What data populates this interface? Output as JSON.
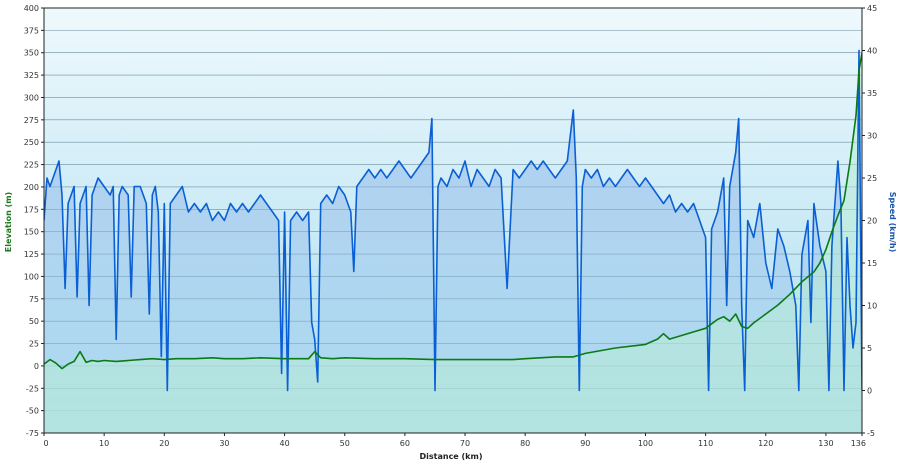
{
  "chart_data": {
    "type": "line",
    "xlabel": "Distance (km)",
    "ylabel_left": "Elevation (m)",
    "ylabel_right": "Speed (km/h)",
    "xlim": [
      0,
      136
    ],
    "x_ticks": [
      0,
      10,
      20,
      30,
      40,
      50,
      60,
      70,
      80,
      90,
      100,
      110,
      120,
      130,
      136
    ],
    "ylim_left": [
      -75,
      400
    ],
    "y_left_ticks": [
      -75,
      -50,
      -25,
      0,
      25,
      50,
      75,
      100,
      125,
      150,
      175,
      200,
      225,
      250,
      275,
      300,
      325,
      350,
      375,
      400
    ],
    "ylim_right": [
      -5,
      45
    ],
    "y_right_ticks": [
      -5,
      0,
      5,
      10,
      15,
      20,
      25,
      30,
      35,
      40,
      45
    ],
    "grid": "horizontal",
    "colors": {
      "elevation": "#0a7a16",
      "speed": "#0b5fd4",
      "elevation_axis": "#1e7a1e",
      "speed_axis": "#1a55b0",
      "plot_top": "#eef9fd",
      "plot_bottom": "#a9dcef",
      "speed_fill": "#6f9fe2"
    },
    "series": [
      {
        "name": "Elevation",
        "axis": "left",
        "points": [
          [
            0,
            2
          ],
          [
            1,
            7
          ],
          [
            2,
            3
          ],
          [
            3,
            -3
          ],
          [
            4,
            2
          ],
          [
            5,
            5
          ],
          [
            6,
            16
          ],
          [
            7,
            4
          ],
          [
            8,
            6
          ],
          [
            9,
            5
          ],
          [
            10,
            6
          ],
          [
            12,
            5
          ],
          [
            14,
            6
          ],
          [
            16,
            7
          ],
          [
            18,
            8
          ],
          [
            20,
            7
          ],
          [
            22,
            8
          ],
          [
            25,
            8
          ],
          [
            28,
            9
          ],
          [
            30,
            8
          ],
          [
            33,
            8
          ],
          [
            36,
            9
          ],
          [
            40,
            8
          ],
          [
            44,
            8
          ],
          [
            45,
            16
          ],
          [
            46,
            9
          ],
          [
            48,
            8
          ],
          [
            50,
            9
          ],
          [
            55,
            8
          ],
          [
            60,
            8
          ],
          [
            65,
            7
          ],
          [
            70,
            7
          ],
          [
            75,
            7
          ],
          [
            78,
            7
          ],
          [
            80,
            8
          ],
          [
            85,
            10
          ],
          [
            88,
            10
          ],
          [
            90,
            14
          ],
          [
            95,
            20
          ],
          [
            100,
            24
          ],
          [
            102,
            30
          ],
          [
            103,
            36
          ],
          [
            104,
            30
          ],
          [
            106,
            34
          ],
          [
            108,
            38
          ],
          [
            110,
            42
          ],
          [
            112,
            52
          ],
          [
            113,
            55
          ],
          [
            114,
            50
          ],
          [
            115,
            58
          ],
          [
            116,
            44
          ],
          [
            117,
            42
          ],
          [
            118,
            48
          ],
          [
            120,
            58
          ],
          [
            122,
            68
          ],
          [
            124,
            80
          ],
          [
            126,
            94
          ],
          [
            128,
            105
          ],
          [
            129,
            115
          ],
          [
            130,
            130
          ],
          [
            131,
            150
          ],
          [
            132,
            168
          ],
          [
            133,
            185
          ],
          [
            134,
            228
          ],
          [
            135,
            280
          ],
          [
            135.5,
            330
          ],
          [
            136,
            350
          ]
        ]
      },
      {
        "name": "Speed",
        "axis": "right",
        "points": [
          [
            0,
            20
          ],
          [
            0.5,
            25
          ],
          [
            1,
            24
          ],
          [
            1.5,
            25
          ],
          [
            2,
            26
          ],
          [
            2.5,
            27
          ],
          [
            3,
            23
          ],
          [
            3.5,
            12
          ],
          [
            4,
            22
          ],
          [
            4.5,
            23
          ],
          [
            5,
            24
          ],
          [
            5.5,
            11
          ],
          [
            6,
            22
          ],
          [
            6.5,
            23
          ],
          [
            7,
            24
          ],
          [
            7.5,
            10
          ],
          [
            8,
            23
          ],
          [
            8.5,
            24
          ],
          [
            9,
            25
          ],
          [
            10,
            24
          ],
          [
            11,
            23
          ],
          [
            11.5,
            24
          ],
          [
            12,
            6
          ],
          [
            12.5,
            23
          ],
          [
            13,
            24
          ],
          [
            14,
            23
          ],
          [
            14.5,
            11
          ],
          [
            15,
            24
          ],
          [
            16,
            24
          ],
          [
            17,
            22
          ],
          [
            17.5,
            9
          ],
          [
            18,
            23
          ],
          [
            18.5,
            24
          ],
          [
            19,
            21
          ],
          [
            19.5,
            4
          ],
          [
            20,
            22
          ],
          [
            20.5,
            0
          ],
          [
            21,
            22
          ],
          [
            22,
            23
          ],
          [
            23,
            24
          ],
          [
            24,
            21
          ],
          [
            25,
            22
          ],
          [
            26,
            21
          ],
          [
            27,
            22
          ],
          [
            28,
            20
          ],
          [
            29,
            21
          ],
          [
            30,
            20
          ],
          [
            31,
            22
          ],
          [
            32,
            21
          ],
          [
            33,
            22
          ],
          [
            34,
            21
          ],
          [
            35,
            22
          ],
          [
            36,
            23
          ],
          [
            37,
            22
          ],
          [
            38,
            21
          ],
          [
            39,
            20
          ],
          [
            39.5,
            2
          ],
          [
            40,
            21
          ],
          [
            40.5,
            0
          ],
          [
            41,
            20
          ],
          [
            42,
            21
          ],
          [
            43,
            20
          ],
          [
            44,
            21
          ],
          [
            44.5,
            8
          ],
          [
            45,
            6
          ],
          [
            45.5,
            1
          ],
          [
            46,
            22
          ],
          [
            47,
            23
          ],
          [
            48,
            22
          ],
          [
            49,
            24
          ],
          [
            50,
            23
          ],
          [
            51,
            21
          ],
          [
            51.5,
            14
          ],
          [
            52,
            24
          ],
          [
            53,
            25
          ],
          [
            54,
            26
          ],
          [
            55,
            25
          ],
          [
            56,
            26
          ],
          [
            57,
            25
          ],
          [
            58,
            26
          ],
          [
            59,
            27
          ],
          [
            60,
            26
          ],
          [
            61,
            25
          ],
          [
            62,
            26
          ],
          [
            63,
            27
          ],
          [
            64,
            28
          ],
          [
            64.5,
            32
          ],
          [
            65,
            0
          ],
          [
            65.5,
            24
          ],
          [
            66,
            25
          ],
          [
            67,
            24
          ],
          [
            68,
            26
          ],
          [
            69,
            25
          ],
          [
            70,
            27
          ],
          [
            71,
            24
          ],
          [
            72,
            26
          ],
          [
            73,
            25
          ],
          [
            74,
            24
          ],
          [
            75,
            26
          ],
          [
            76,
            25
          ],
          [
            77,
            12
          ],
          [
            78,
            26
          ],
          [
            79,
            25
          ],
          [
            80,
            26
          ],
          [
            81,
            27
          ],
          [
            82,
            26
          ],
          [
            83,
            27
          ],
          [
            84,
            26
          ],
          [
            85,
            25
          ],
          [
            86,
            26
          ],
          [
            87,
            27
          ],
          [
            88,
            33
          ],
          [
            88.5,
            25
          ],
          [
            89,
            0
          ],
          [
            89.5,
            24
          ],
          [
            90,
            26
          ],
          [
            91,
            25
          ],
          [
            92,
            26
          ],
          [
            93,
            24
          ],
          [
            94,
            25
          ],
          [
            95,
            24
          ],
          [
            96,
            25
          ],
          [
            97,
            26
          ],
          [
            98,
            25
          ],
          [
            99,
            24
          ],
          [
            100,
            25
          ],
          [
            101,
            24
          ],
          [
            102,
            23
          ],
          [
            103,
            22
          ],
          [
            104,
            23
          ],
          [
            105,
            21
          ],
          [
            106,
            22
          ],
          [
            107,
            21
          ],
          [
            108,
            22
          ],
          [
            109,
            20
          ],
          [
            110,
            18
          ],
          [
            110.5,
            0
          ],
          [
            111,
            19
          ],
          [
            112,
            21
          ],
          [
            113,
            25
          ],
          [
            113.5,
            10
          ],
          [
            114,
            24
          ],
          [
            115,
            28
          ],
          [
            115.5,
            32
          ],
          [
            116,
            10
          ],
          [
            116.5,
            0
          ],
          [
            117,
            20
          ],
          [
            118,
            18
          ],
          [
            119,
            22
          ],
          [
            120,
            15
          ],
          [
            121,
            12
          ],
          [
            122,
            19
          ],
          [
            123,
            17
          ],
          [
            124,
            14
          ],
          [
            125,
            10
          ],
          [
            125.5,
            0
          ],
          [
            126,
            16
          ],
          [
            127,
            20
          ],
          [
            127.5,
            8
          ],
          [
            128,
            22
          ],
          [
            129,
            17
          ],
          [
            130,
            14
          ],
          [
            130.5,
            0
          ],
          [
            131,
            17
          ],
          [
            132,
            27
          ],
          [
            132.5,
            22
          ],
          [
            133,
            0
          ],
          [
            133.5,
            18
          ],
          [
            134,
            10
          ],
          [
            134.5,
            5
          ],
          [
            135,
            8
          ],
          [
            135.5,
            40
          ],
          [
            136,
            0
          ]
        ]
      }
    ]
  }
}
